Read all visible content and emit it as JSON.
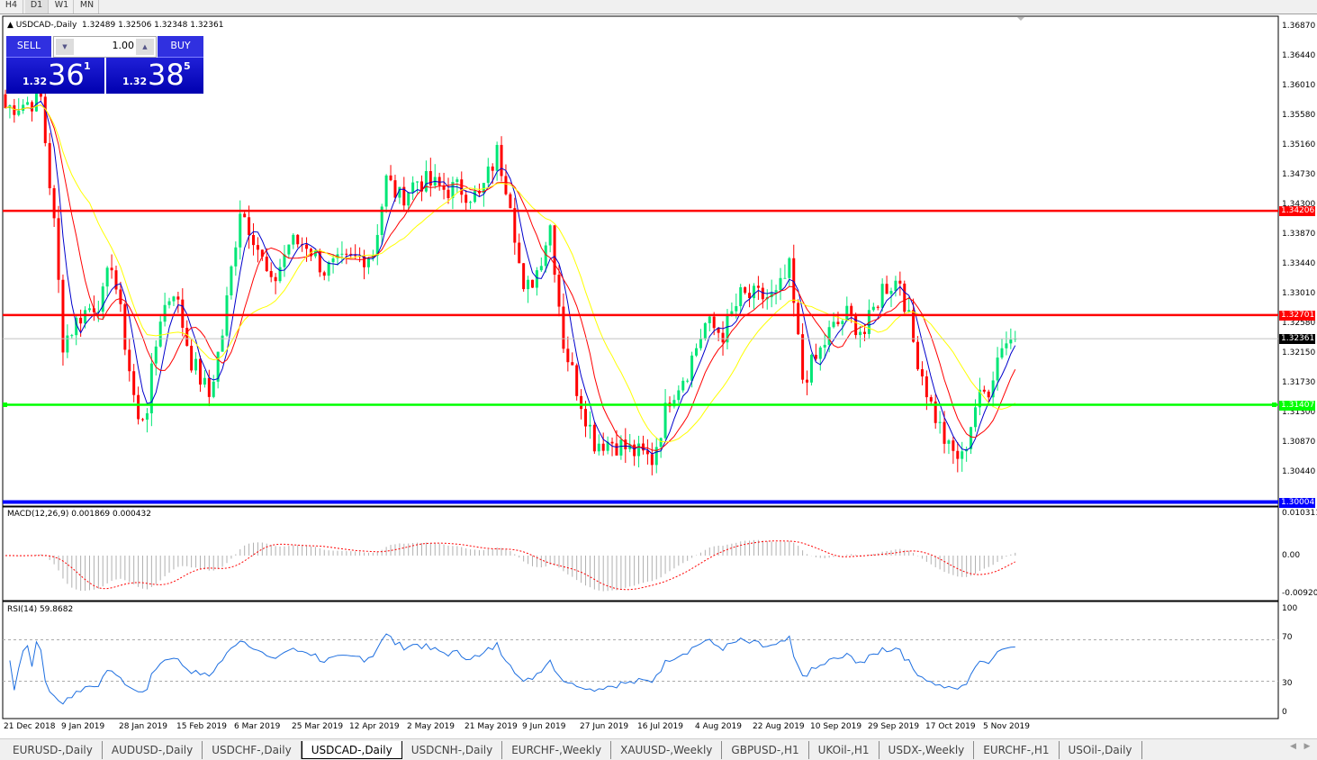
{
  "timeframes": [
    "H4",
    "D1",
    "W1",
    "MN"
  ],
  "active_timeframe": "D1",
  "chart": {
    "symbol_title": "USDCAD-,Daily",
    "ohlc": "1.32489 1.32506 1.32348 1.32361",
    "price_axis": [
      "1.36870",
      "1.36440",
      "1.36010",
      "1.35580",
      "1.35160",
      "1.34730",
      "1.34300",
      "1.33870",
      "1.33440",
      "1.33010",
      "1.32580",
      "1.32150",
      "1.31730",
      "1.31300",
      "1.30870",
      "1.30440"
    ],
    "price_range": [
      1.30004,
      1.3687
    ],
    "horizontal_lines": [
      {
        "label": "1.34206",
        "price": 1.34206,
        "color": "#ff0000"
      },
      {
        "label": "1.32701",
        "price": 1.32701,
        "color": "#ff0000"
      },
      {
        "label": "1.31407",
        "price": 1.31407,
        "color": "#00ff00"
      },
      {
        "label": "1.30004",
        "price": 1.30004,
        "color": "#0000ff"
      }
    ],
    "current_price": {
      "label": "1.32361",
      "price": 1.32361
    },
    "close_path": [
      [
        0,
        1.3569
      ],
      [
        8,
        1.3582
      ],
      [
        11,
        1.34
      ],
      [
        13,
        1.3231
      ],
      [
        17,
        1.327
      ],
      [
        22,
        1.3296
      ],
      [
        24,
        1.3348
      ],
      [
        27,
        1.3231
      ],
      [
        30,
        1.3114
      ],
      [
        32,
        1.314
      ],
      [
        35,
        1.327
      ],
      [
        38,
        1.3309
      ],
      [
        42,
        1.3205
      ],
      [
        46,
        1.3153
      ],
      [
        49,
        1.3244
      ],
      [
        53,
        1.3426
      ],
      [
        56,
        1.3387
      ],
      [
        60,
        1.3309
      ],
      [
        64,
        1.3374
      ],
      [
        68,
        1.3374
      ],
      [
        72,
        1.3335
      ],
      [
        78,
        1.3348
      ],
      [
        83,
        1.3361
      ],
      [
        86,
        1.3465
      ],
      [
        89,
        1.3439
      ],
      [
        93,
        1.3465
      ],
      [
        99,
        1.3452
      ],
      [
        103,
        1.3452
      ],
      [
        107,
        1.3439
      ],
      [
        111,
        1.3504
      ],
      [
        114,
        1.3439
      ],
      [
        117,
        1.3296
      ],
      [
        120,
        1.3335
      ],
      [
        123,
        1.34
      ],
      [
        126,
        1.3231
      ],
      [
        129,
        1.3166
      ],
      [
        133,
        1.3088
      ],
      [
        137,
        1.3088
      ],
      [
        141,
        1.3075
      ],
      [
        146,
        1.3062
      ],
      [
        150,
        1.3153
      ],
      [
        154,
        1.3192
      ],
      [
        158,
        1.3257
      ],
      [
        162,
        1.3244
      ],
      [
        166,
        1.3296
      ],
      [
        170,
        1.3296
      ],
      [
        174,
        1.3296
      ],
      [
        177,
        1.3335
      ],
      [
        180,
        1.3179
      ],
      [
        183,
        1.3205
      ],
      [
        186,
        1.3244
      ],
      [
        190,
        1.327
      ],
      [
        194,
        1.3244
      ],
      [
        198,
        1.3309
      ],
      [
        202,
        1.3322
      ],
      [
        205,
        1.3231
      ],
      [
        209,
        1.314
      ],
      [
        213,
        1.3075
      ],
      [
        216,
        1.3062
      ],
      [
        219,
        1.314
      ],
      [
        222,
        1.3166
      ],
      [
        225,
        1.3231
      ],
      [
        228,
        1.32361
      ]
    ],
    "bull_color": "#00e676",
    "bear_color": "#ff0000",
    "ma_colors": [
      "#0000cc",
      "#ff0000",
      "#ffff00"
    ]
  },
  "trade_panel": {
    "sell_label": "SELL",
    "buy_label": "BUY",
    "lot": "1.00",
    "sell": {
      "prefix": "1.32",
      "big": "36",
      "sup": "1"
    },
    "buy": {
      "prefix": "1.32",
      "big": "38",
      "sup": "5"
    }
  },
  "macd": {
    "label": "MACD(12,26,9) 0.001869 0.000432",
    "axis": [
      "0.010311",
      "0.00",
      "-0.009203"
    ],
    "range": [
      -0.009203,
      0.010311
    ]
  },
  "rsi": {
    "label": "RSI(14) 59.8682",
    "axis": [
      "100",
      "70",
      "30",
      "0"
    ],
    "line_color": "#1e6fe0"
  },
  "dates": [
    "21 Dec 2018",
    "9 Jan 2019",
    "28 Jan 2019",
    "15 Feb 2019",
    "6 Mar 2019",
    "25 Mar 2019",
    "12 Apr 2019",
    "2 May 2019",
    "21 May 2019",
    "9 Jun 2019",
    "27 Jun 2019",
    "16 Jul 2019",
    "4 Aug 2019",
    "22 Aug 2019",
    "10 Sep 2019",
    "29 Sep 2019",
    "17 Oct 2019",
    "5 Nov 2019"
  ],
  "tabs": [
    "EURUSD-,Daily",
    "AUDUSD-,Daily",
    "USDCHF-,Daily",
    "USDCAD-,Daily",
    "USDCNH-,Daily",
    "EURCHF-,Weekly",
    "XAUUSD-,Weekly",
    "GBPUSD-,H1",
    "UKOil-,H1",
    "USDX-,Weekly",
    "EURCHF-,H1",
    "USOil-,Daily"
  ],
  "active_tab": "USDCAD-,Daily"
}
